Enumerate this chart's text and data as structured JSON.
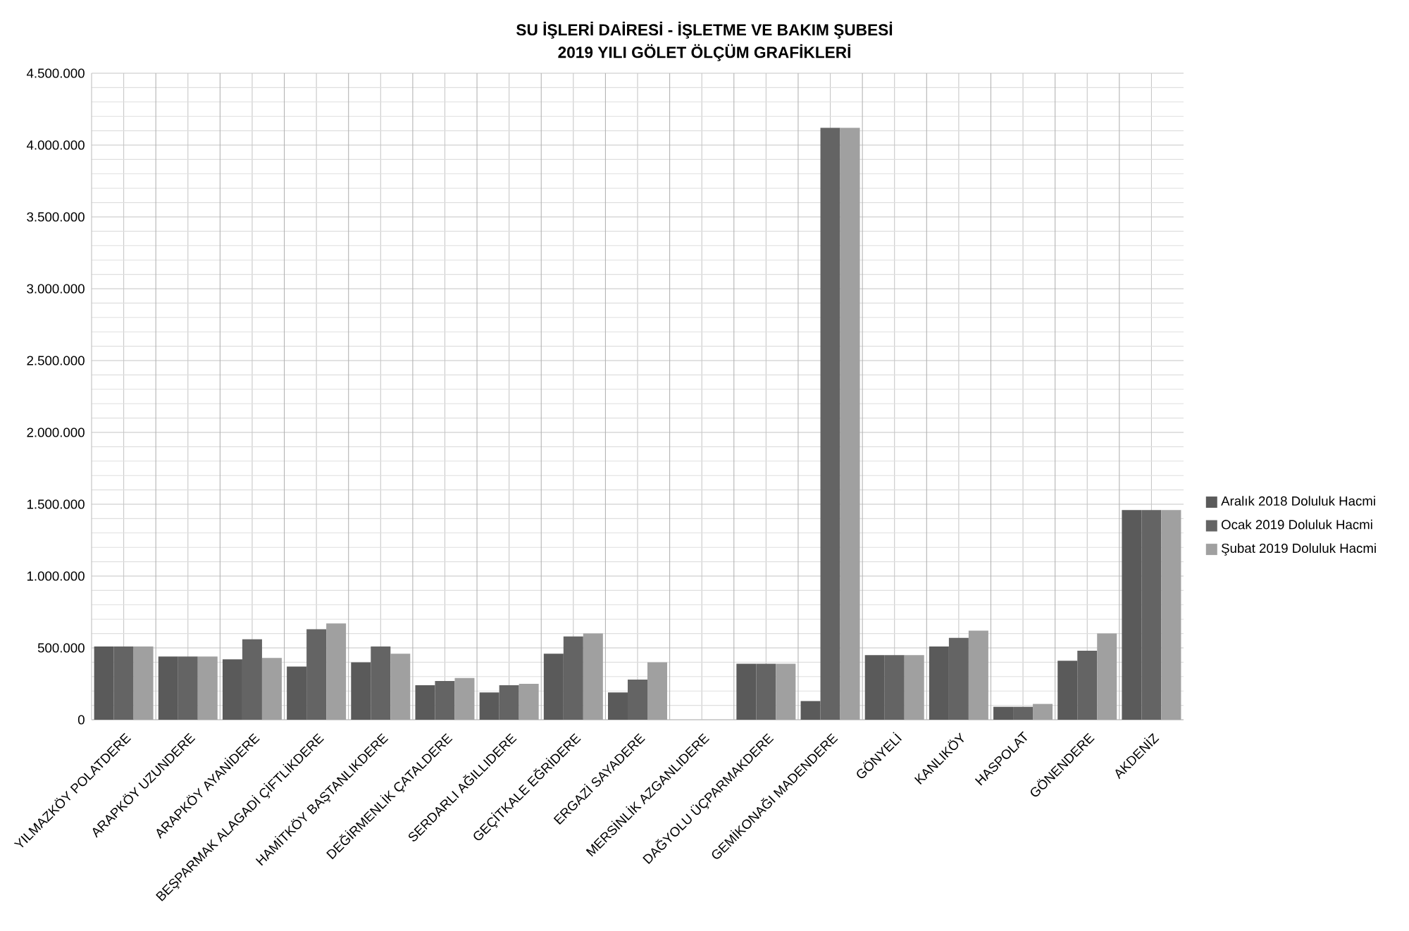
{
  "chart_data": {
    "type": "bar",
    "title": "SU İŞLERİ DAİRESİ - İŞLETME VE BAKIM ŞUBESİ",
    "subtitle": "2019 YILI GÖLET ÖLÇÜM GRAFİKLERİ",
    "categories": [
      "YILMAZKÖY POLATDERE",
      "ARAPKÖY UZUNDERE",
      "ARAPKÖY AYANİDERE",
      "BEŞPARMAK ALAGADİ ÇİFTLİKDERE",
      "HAMİTKÖY BAŞTANLIKDERE",
      "DEĞİRMENLİK ÇATALDERE",
      "SERDARLI AĞILLIDERE",
      "GEÇİTKALE EĞRİDERE",
      "ERGAZİ SAYADERE",
      "MERSİNLİK AZGANLIDERE",
      "DAĞYOLU ÜÇPARMAKDERE",
      "GEMİKONAĞI MADENDERE",
      "GÖNYELİ",
      "KANLIKÖY",
      "HASPOLAT",
      "GÖNENDERE",
      "AKDENİZ"
    ],
    "series": [
      {
        "name": "Aralık 2018 Doluluk Hacmi",
        "color": "#5a5a5a",
        "values": [
          510000,
          440000,
          420000,
          370000,
          400000,
          240000,
          190000,
          460000,
          190000,
          null,
          390000,
          130000,
          450000,
          510000,
          90000,
          410000,
          1460000
        ]
      },
      {
        "name": "Ocak 2019 Doluluk Hacmi",
        "color": "#646464",
        "values": [
          510000,
          440000,
          560000,
          630000,
          510000,
          270000,
          240000,
          580000,
          280000,
          null,
          390000,
          4120000,
          450000,
          570000,
          90000,
          480000,
          1460000
        ]
      },
      {
        "name": "Şubat 2019 Doluluk Hacmi",
        "color": "#a0a0a0",
        "values": [
          510000,
          440000,
          430000,
          670000,
          460000,
          290000,
          250000,
          600000,
          400000,
          null,
          390000,
          4120000,
          450000,
          620000,
          110000,
          600000,
          1460000
        ]
      }
    ],
    "ylim": [
      0,
      4500000
    ],
    "yticks": [
      0,
      {
        "value": 500000,
        "label": "500.000"
      },
      {
        "value": 1000000,
        "label": "1.000.000"
      },
      {
        "value": 1500000,
        "label": "1.500.000"
      },
      {
        "value": 2000000,
        "label": "2.000.000"
      },
      {
        "value": 2500000,
        "label": "2.500.000"
      },
      {
        "value": 3000000,
        "label": "3.000.000"
      },
      {
        "value": 3500000,
        "label": "3.500.000"
      },
      {
        "value": 4000000,
        "label": "4.000.000"
      },
      {
        "value": 4500000,
        "label": "4.500.000"
      }
    ],
    "grid": true,
    "legend": "right"
  }
}
